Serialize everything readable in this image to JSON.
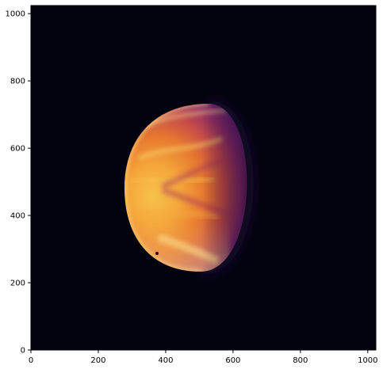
{
  "image": {
    "subject": "planet-venus-false-color",
    "colormap": "inferno",
    "background_color": "#03030f"
  },
  "axes": {
    "x_range": [
      0,
      1024
    ],
    "y_range": [
      0,
      1024
    ],
    "x_ticks": [
      "0",
      "200",
      "400",
      "600",
      "800",
      "1000"
    ],
    "y_ticks": [
      "0",
      "200",
      "400",
      "600",
      "800",
      "1000"
    ]
  }
}
